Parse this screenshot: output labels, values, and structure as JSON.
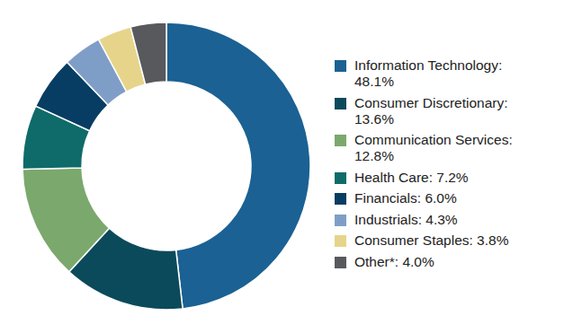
{
  "chart_data": {
    "type": "pie",
    "categories": [
      "Information Technology: 48.1%",
      "Consumer Discretionary: 13.6%",
      "Communication Services: 12.8%",
      "Health Care: 7.2%",
      "Financials: 6.0%",
      "Industrials: 4.3%",
      "Consumer Staples: 3.8%",
      "Other*: 4.0%"
    ],
    "values": [
      48.1,
      13.6,
      12.8,
      7.2,
      6.0,
      4.3,
      3.8,
      4.0
    ],
    "colors": [
      "#1b6193",
      "#0b4a5b",
      "#7ba86c",
      "#0e6b6a",
      "#073d63",
      "#7f9ec7",
      "#e6d48a",
      "#58595d"
    ],
    "legend": "right"
  }
}
